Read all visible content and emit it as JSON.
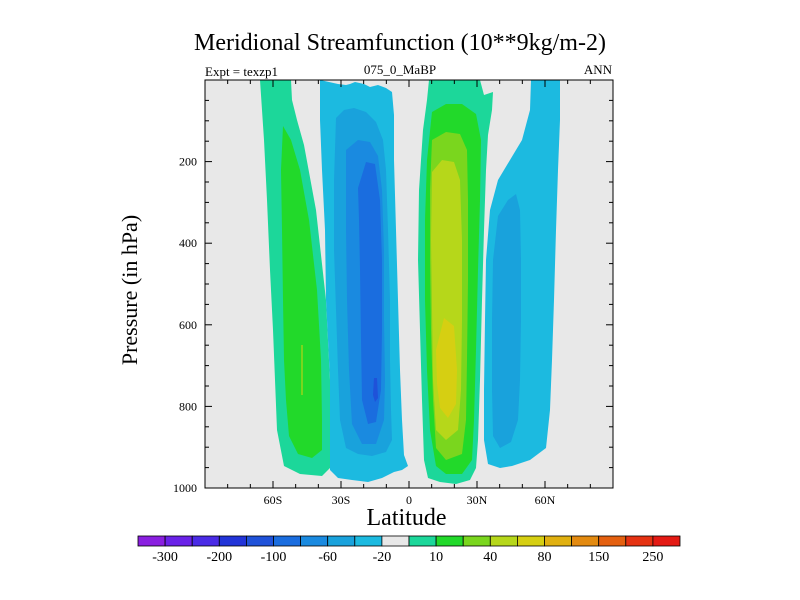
{
  "header": {
    "title": "Meridional Streamfunction (10**9kg/m-2)",
    "left": "Expt = texzp1",
    "center": "075_0_MaBP",
    "right": "ANN"
  },
  "chart_data": {
    "type": "contour-filled",
    "title": "Meridional Streamfunction (10**9kg/m-2)",
    "xlabel": "Latitude",
    "ylabel": "Pressure (in hPa)",
    "xlim": [
      -90,
      90
    ],
    "ylim": [
      1000,
      0
    ],
    "x_ticks": [
      {
        "value": -60,
        "label": "60S"
      },
      {
        "value": -30,
        "label": "30S"
      },
      {
        "value": 0,
        "label": "0"
      },
      {
        "value": 30,
        "label": "30N"
      },
      {
        "value": 60,
        "label": "60N"
      }
    ],
    "y_ticks": [
      {
        "value": 200,
        "label": "200"
      },
      {
        "value": 400,
        "label": "400"
      },
      {
        "value": 600,
        "label": "600"
      },
      {
        "value": 800,
        "label": "800"
      },
      {
        "value": 1000,
        "label": "1000"
      }
    ],
    "colorbar": {
      "labels": [
        "-300",
        "-200",
        "-100",
        "-60",
        "-20",
        "10",
        "40",
        "80",
        "150",
        "250"
      ],
      "colors": [
        "#8a1fe0",
        "#6a22e8",
        "#4a2be6",
        "#2234d8",
        "#1f52d9",
        "#1a6ddf",
        "#1a8ae0",
        "#19a2dc",
        "#1cbae0",
        "#e8e8e8",
        "#1cd79a",
        "#22d92a",
        "#7ad61e",
        "#b6d71a",
        "#d6cf12",
        "#e0b010",
        "#e38a10",
        "#e46010",
        "#e53212",
        "#e41a14"
      ]
    },
    "background_color": "#e8e8e8",
    "cells": [
      {
        "name": "southern-cell",
        "sign": "positive",
        "lat_center": -58,
        "max_level": "10 to 40",
        "color": "#22d92a"
      },
      {
        "name": "southern-hadley-cell",
        "sign": "negative",
        "lat_center": -15,
        "max_level": "-60 to -100",
        "color": "#1f52d9"
      },
      {
        "name": "northern-hadley-cell",
        "sign": "positive",
        "lat_center": 15,
        "max_level": "80 to 150",
        "color": "#d6cf12"
      },
      {
        "name": "northern-ferrel-cell",
        "sign": "negative",
        "lat_center": 45,
        "max_level": "-20 to -60",
        "color": "#19a2dc"
      }
    ]
  }
}
